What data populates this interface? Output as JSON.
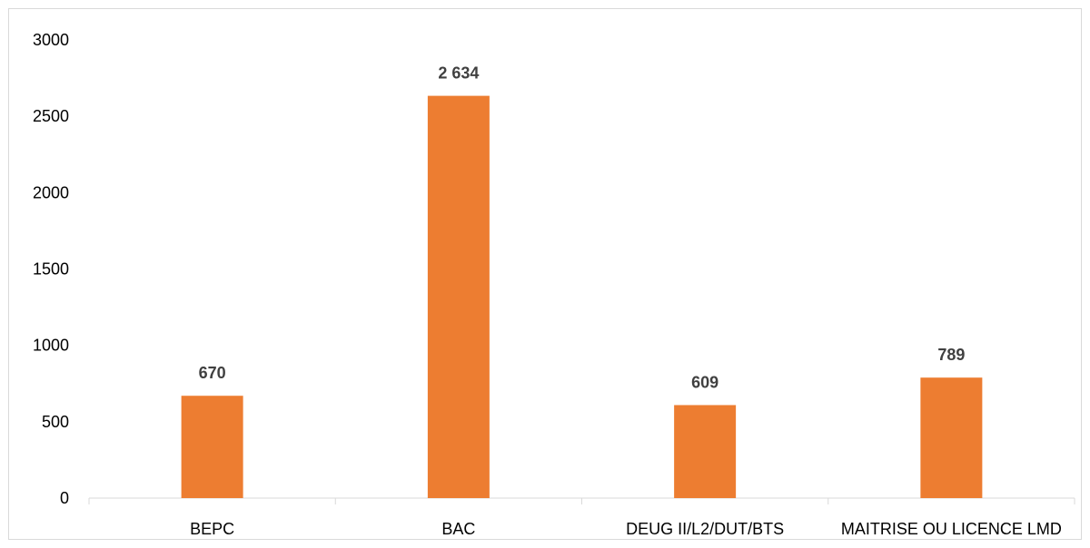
{
  "chart_data": {
    "type": "bar",
    "title": "",
    "xlabel": "",
    "ylabel": "",
    "categories": [
      "BEPC",
      "BAC",
      "DEUG II/L2/DUT/BTS",
      "MAITRISE OU LICENCE LMD"
    ],
    "values": [
      670,
      2634,
      609,
      789
    ],
    "data_labels": [
      "670",
      "2 634",
      "609",
      "789"
    ],
    "ylim": [
      0,
      3000
    ],
    "yticks": [
      0,
      500,
      1000,
      1500,
      2000,
      2500,
      3000
    ],
    "ytick_labels": [
      "0",
      "500",
      "1000",
      "1500",
      "2000",
      "2500",
      "3000"
    ],
    "grid": false,
    "legend": "none",
    "bar_color": "#ED7D31"
  }
}
